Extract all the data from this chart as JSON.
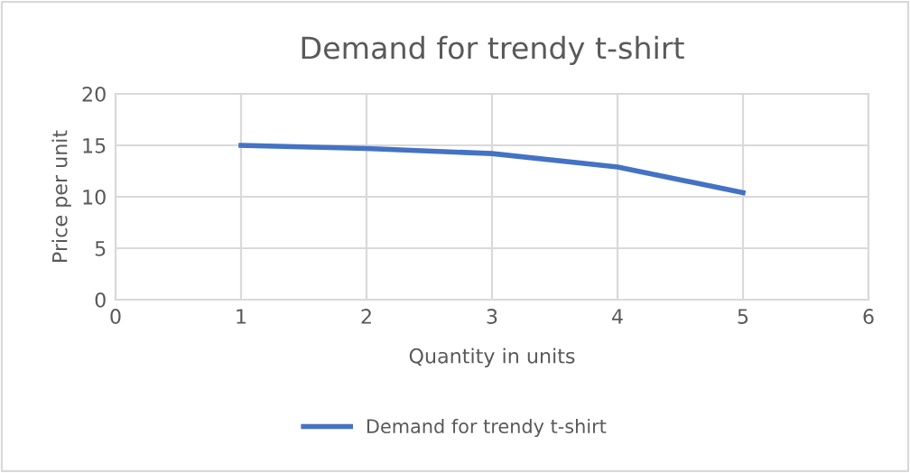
{
  "chart_data": {
    "type": "line",
    "title": "Demand for trendy t-shirt",
    "xlabel": "Quantity in units",
    "ylabel": "Price per unit",
    "x": [
      1,
      2,
      3,
      4,
      5
    ],
    "series": [
      {
        "name": "Demand for trendy t-shirt",
        "color": "#4472c4",
        "values": [
          15,
          14.7,
          14.2,
          12.9,
          10.4
        ]
      }
    ],
    "xlim": [
      0,
      6
    ],
    "xticks": [
      0,
      1,
      2,
      3,
      4,
      5,
      6
    ],
    "ylim": [
      0,
      20
    ],
    "yticks": [
      0,
      5,
      10,
      15,
      20
    ],
    "grid": true,
    "legend": "bottom",
    "marker": "none",
    "line_style": "solid"
  }
}
